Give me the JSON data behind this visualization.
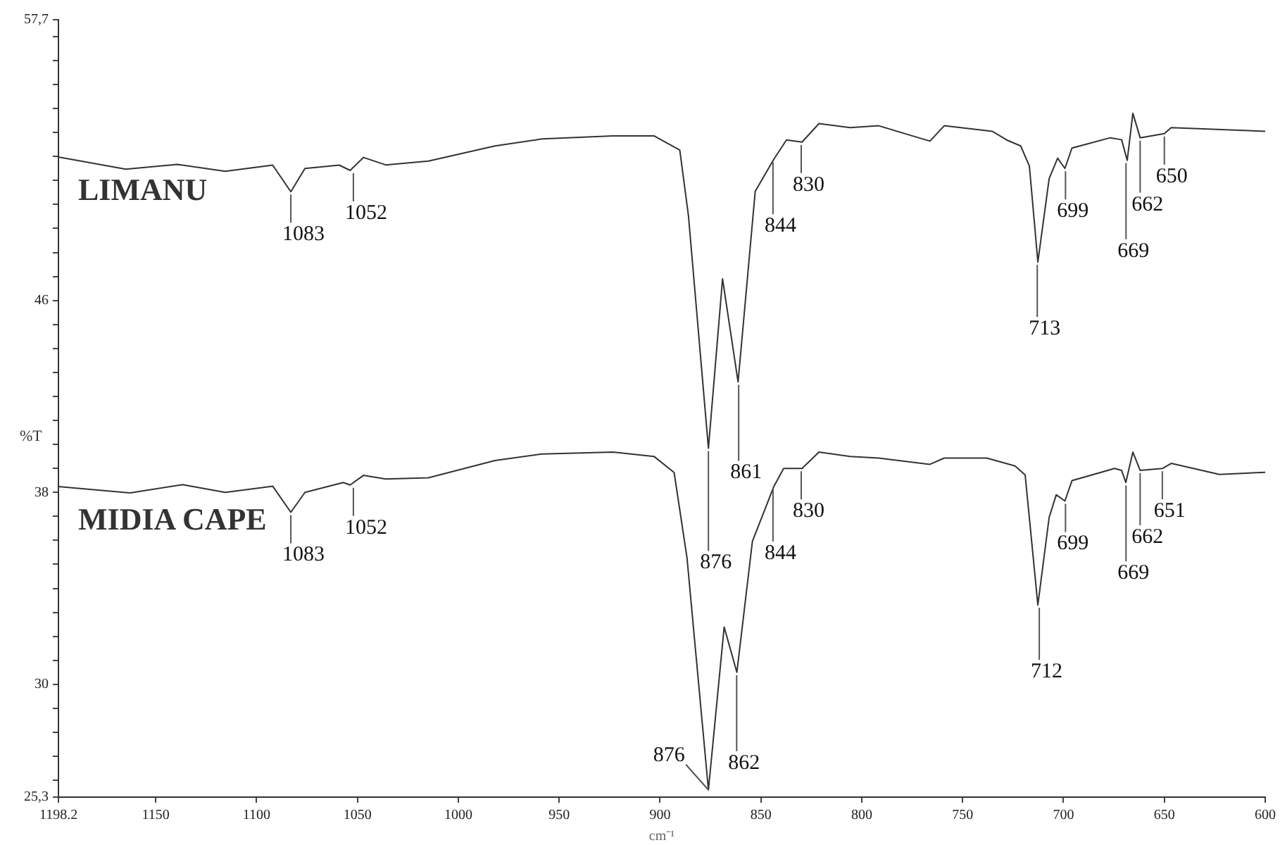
{
  "chart_data": {
    "type": "line",
    "xlabel": "cm⁻¹",
    "ylabel": "%T",
    "xlim": [
      1198.2,
      600
    ],
    "xticks": [
      1198.2,
      1150,
      1100,
      1050,
      1000,
      950,
      900,
      850,
      800,
      750,
      700,
      650,
      600
    ],
    "ylim": [
      25.3,
      57.7
    ],
    "yticks": [
      {
        "value": 25.3,
        "label": "25,3"
      },
      {
        "value": 26,
        "label": null
      },
      {
        "value": 27,
        "label": null
      },
      {
        "value": 28,
        "label": null
      },
      {
        "value": 29,
        "label": null
      },
      30,
      {
        "value": 31,
        "label": null
      },
      {
        "value": 32,
        "label": null
      },
      {
        "value": 33,
        "label": null
      },
      {
        "value": 34,
        "label": null
      },
      {
        "value": 35,
        "label": null
      },
      {
        "value": 36,
        "label": null
      },
      {
        "value": 37,
        "label": null
      },
      38,
      {
        "value": 39,
        "label": null
      },
      {
        "value": 40,
        "label": null
      },
      {
        "value": 41,
        "label": null
      },
      {
        "value": 42,
        "label": null
      },
      {
        "value": 43,
        "label": null
      },
      {
        "value": 44,
        "label": null
      },
      {
        "value": 45,
        "label": null
      },
      46,
      {
        "value": 47,
        "label": null
      },
      {
        "value": 48,
        "label": null
      },
      {
        "value": 49,
        "label": null
      },
      {
        "value": 50,
        "label": null
      },
      {
        "value": 51,
        "label": null
      },
      {
        "value": 52,
        "label": null
      },
      {
        "value": 53,
        "label": null
      },
      {
        "value": 54,
        "label": null
      },
      {
        "value": 55,
        "label": null
      },
      {
        "value": 56,
        "label": null
      },
      {
        "value": 57,
        "label": null
      },
      {
        "value": 57.7,
        "label": "57,7"
      }
    ],
    "grid": false,
    "legend": false,
    "line_style": "solid",
    "series": [
      {
        "name": "LIMANU",
        "color": "#333333",
        "x": [
          1198.2,
          1164.8,
          1139.4,
          1115.5,
          1092,
          1083,
          1076,
          1059,
          1053.6,
          1047,
          1036,
          1014.8,
          981.8,
          958.5,
          923.3,
          903,
          890.2,
          885.9,
          876,
          869,
          861.3,
          852.8,
          843.6,
          837.3,
          829.6,
          821.2,
          805.7,
          791.6,
          766.2,
          759.1,
          735.3,
          728.2,
          721.2,
          716.9,
          712.7,
          707.1,
          702.9,
          699.3,
          695.8,
          676.8,
          671.2,
          668.4,
          665.6,
          662,
          650,
          646.6,
          600
        ],
        "values": [
          51.98,
          51.47,
          51.67,
          51.38,
          51.64,
          50.53,
          51.5,
          51.64,
          51.42,
          51.96,
          51.65,
          51.81,
          52.44,
          52.73,
          52.86,
          52.86,
          52.27,
          49.53,
          39.84,
          46.9,
          42.6,
          50.55,
          51.88,
          52.69,
          52.6,
          53.37,
          53.2,
          53.28,
          52.64,
          53.28,
          53.05,
          52.69,
          52.44,
          51.6,
          47.6,
          51.08,
          51.93,
          51.5,
          52.35,
          52.78,
          52.7,
          51.84,
          53.8,
          52.78,
          52.95,
          53.2,
          53.05
        ]
      },
      {
        "name": "MIDIA CAPE",
        "color": "#333333",
        "x": [
          1198.2,
          1162.7,
          1136.7,
          1115.5,
          1092,
          1083,
          1076,
          1057,
          1053.6,
          1047,
          1036,
          1014.8,
          981.8,
          958.5,
          923.3,
          903,
          893,
          886.6,
          876,
          868.2,
          861.9,
          854.2,
          843.6,
          838.7,
          829.6,
          821.2,
          805.7,
          791.6,
          766.2,
          759.1,
          738,
          724,
          719,
          712.7,
          707.1,
          703.6,
          699.3,
          695.8,
          674.7,
          671.2,
          669.1,
          665.6,
          662,
          650.8,
          646.6,
          622.7,
          600
        ],
        "values": [
          38.24,
          37.98,
          38.32,
          38.0,
          38.26,
          37.17,
          38.0,
          38.41,
          38.31,
          38.71,
          38.56,
          38.61,
          39.33,
          39.6,
          39.68,
          39.5,
          38.83,
          35.26,
          25.6,
          32.39,
          30.5,
          35.96,
          38.24,
          39.0,
          39.0,
          39.68,
          39.5,
          39.43,
          39.17,
          39.43,
          39.43,
          39.1,
          38.73,
          33.31,
          36.96,
          37.9,
          37.64,
          38.49,
          39.0,
          38.92,
          38.41,
          39.68,
          38.92,
          39.0,
          39.21,
          38.75,
          38.84
        ]
      }
    ],
    "annotations": [
      {
        "text": "1083",
        "x": 1083,
        "y": 50.53
      },
      {
        "text": "1052",
        "x": 1052,
        "y": 51.42
      },
      {
        "text": "876",
        "x": 876,
        "y": 39.84
      },
      {
        "text": "861",
        "x": 861,
        "y": 42.6
      },
      {
        "text": "844",
        "x": 844,
        "y": 51.88
      },
      {
        "text": "830",
        "x": 830,
        "y": 52.6
      },
      {
        "text": "713",
        "x": 713,
        "y": 47.6
      },
      {
        "text": "699",
        "x": 699,
        "y": 51.5
      },
      {
        "text": "669",
        "x": 669,
        "y": 51.84
      },
      {
        "text": "662",
        "x": 662,
        "y": 52.78
      },
      {
        "text": "650",
        "x": 650,
        "y": 52.95
      },
      {
        "text": "1083",
        "x": 1083,
        "y": 37.17
      },
      {
        "text": "1052",
        "x": 1052,
        "y": 38.31
      },
      {
        "text": "876",
        "x": 876,
        "y": 25.6
      },
      {
        "text": "862",
        "x": 862,
        "y": 30.5
      },
      {
        "text": "844",
        "x": 844,
        "y": 38.24
      },
      {
        "text": "830",
        "x": 830,
        "y": 39.0
      },
      {
        "text": "712",
        "x": 712,
        "y": 33.31
      },
      {
        "text": "699",
        "x": 699,
        "y": 37.64
      },
      {
        "text": "669",
        "x": 669,
        "y": 38.41
      },
      {
        "text": "662",
        "x": 662,
        "y": 38.92
      },
      {
        "text": "651",
        "x": 651,
        "y": 39.0
      }
    ]
  }
}
